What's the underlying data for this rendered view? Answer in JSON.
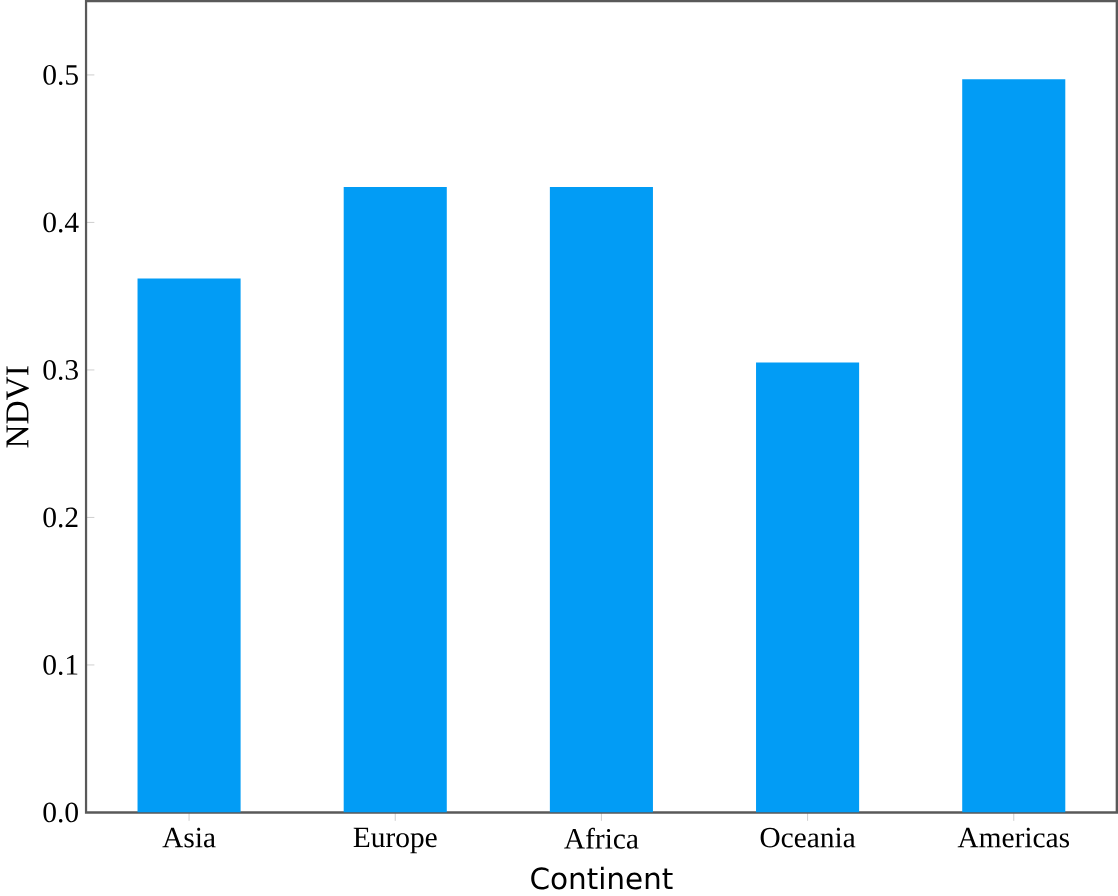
{
  "chart_data": {
    "type": "bar",
    "xlabel": "Continent",
    "ylabel": "NDVI",
    "categories": [
      "Asia",
      "Europe",
      "Africa",
      "Oceania",
      "Americas"
    ],
    "values": [
      0.362,
      0.424,
      0.424,
      0.305,
      0.497
    ],
    "color": "#029cf5",
    "ylim": [
      0,
      0.55
    ],
    "yticks": [
      {
        "value": 0,
        "label": "0.0"
      },
      0.1,
      0.2,
      0.3,
      0.4,
      0.5
    ],
    "grid": false
  }
}
